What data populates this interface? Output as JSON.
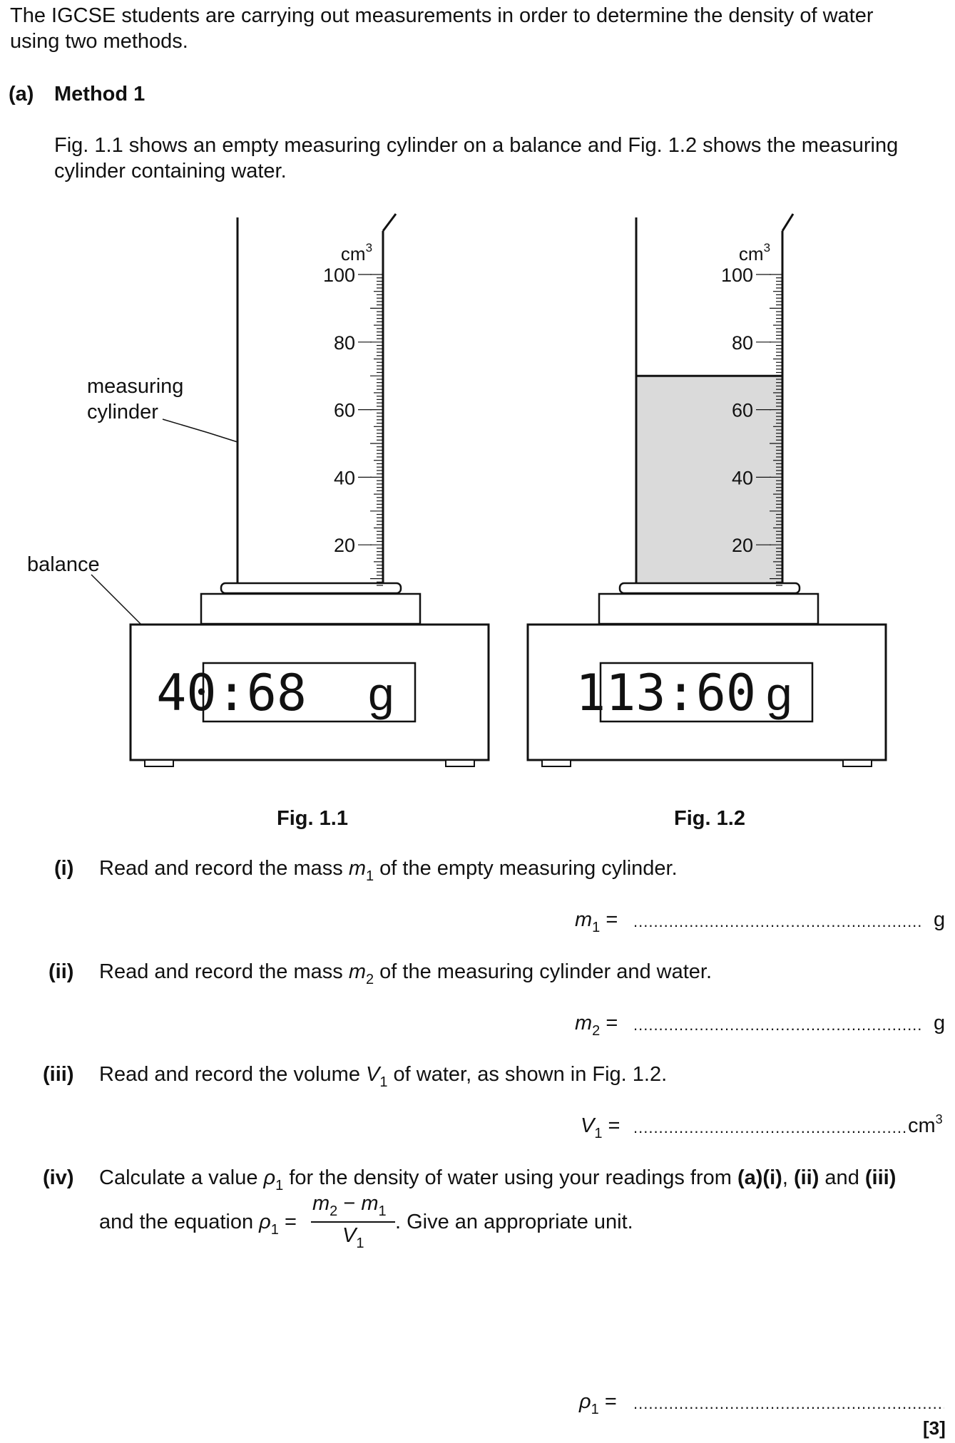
{
  "intro": {
    "line1": "The IGCSE students are carrying out measurements in order to determine the density of water",
    "line2": "using two methods."
  },
  "part_a": {
    "label": "(a)",
    "title": "Method 1"
  },
  "fig_desc": {
    "line1": "Fig. 1.1 shows an empty measuring cylinder on a balance and Fig. 1.2 shows the measuring",
    "line2": "cylinder containing water."
  },
  "figure": {
    "unit": "cm",
    "unit_power": "3",
    "scale_labels": [
      "100",
      "80",
      "60",
      "40",
      "20"
    ],
    "label_cylinder_1": "measuring",
    "label_cylinder_2": "cylinder",
    "label_balance": "balance",
    "fig1": {
      "caption": "Fig. 1.1",
      "display": "40:68",
      "display_unit": "g"
    },
    "fig2": {
      "caption": "Fig. 1.2",
      "display": "113:60",
      "display_unit": "g",
      "water_level_cm3": 70
    }
  },
  "questions": {
    "i": {
      "num": "(i)",
      "pre": "Read and record the mass ",
      "var": "m",
      "sub": "1",
      "post": " of the empty measuring cylinder.",
      "ans_var": "m",
      "ans_sub": "1",
      "unit": "g"
    },
    "ii": {
      "num": "(ii)",
      "pre": "Read and record the mass ",
      "var": "m",
      "sub": "2",
      "post": " of the measuring cylinder and water.",
      "ans_var": "m",
      "ans_sub": "2",
      "unit": "g"
    },
    "iii": {
      "num": "(iii)",
      "pre": "Read and record the volume ",
      "var": "V",
      "sub": "1",
      "post": " of water, as shown in Fig. 1.2.",
      "ans_var": "V",
      "ans_sub": "1",
      "unit": "cm",
      "unit_power": "3"
    },
    "iv": {
      "num": "(iv)",
      "pre": "Calculate a value ",
      "var": "ρ",
      "sub": "1",
      "mid": " for the density of water using your readings from ",
      "ref1": "(a)(i)",
      "comma": ", ",
      "ref2": "(ii)",
      "and": " and ",
      "ref3": "(iii)",
      "line2_pre": "and the equation ",
      "eq_lhs": "ρ",
      "eq_lhs_sub": "1",
      "eq_equals": " =",
      "num_m2": "m",
      "num_m2_sub": "2",
      "num_minus": " − ",
      "num_m1": "m",
      "num_m1_sub": "1",
      "den_v": "V",
      "den_v_sub": "1",
      "line2_post": ". Give an appropriate unit.",
      "ans_var": "ρ",
      "ans_sub": "1",
      "marks": "[3]"
    }
  },
  "equals": "="
}
